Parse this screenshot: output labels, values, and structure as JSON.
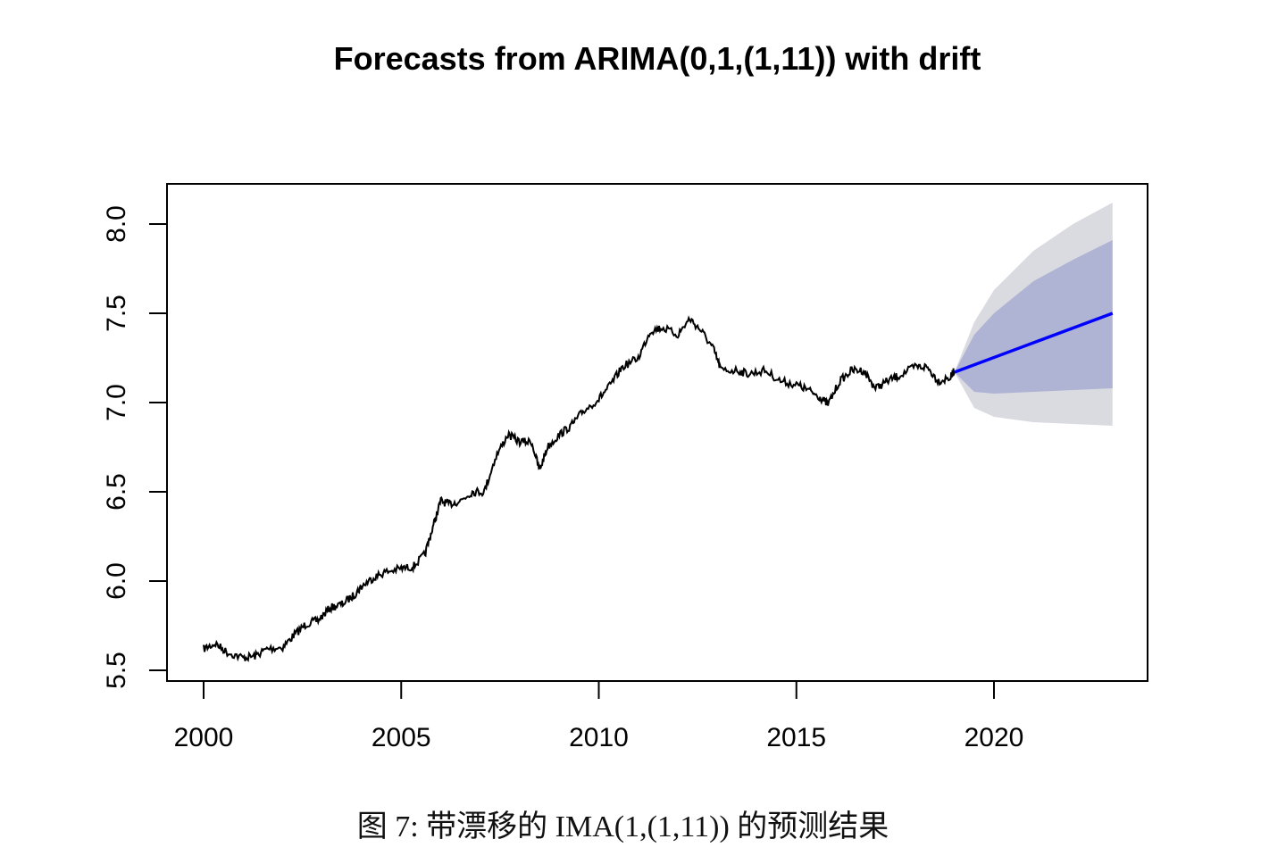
{
  "chart_data": {
    "type": "line",
    "title": "Forecasts from ARIMA(0,1,(1,11)) with drift",
    "xlabel": "",
    "ylabel": "",
    "xlim": [
      1999.1,
      2023.9
    ],
    "ylim": [
      5.44,
      8.23
    ],
    "x_ticks": [
      2000,
      2005,
      2010,
      2015,
      2020
    ],
    "x_tick_labels": [
      "2000",
      "2005",
      "2010",
      "2015",
      "2020"
    ],
    "y_ticks": [
      5.5,
      6.0,
      6.5,
      7.0,
      7.5,
      8.0
    ],
    "y_tick_labels": [
      "5.5",
      "6.0",
      "6.5",
      "7.0",
      "7.5",
      "8.0"
    ],
    "grid": false,
    "legend": "none",
    "series": [
      {
        "color": "#000000",
        "x": [
          2000.0,
          2000.3,
          2000.6,
          2001.0,
          2001.3,
          2001.6,
          2002.0,
          2002.3,
          2002.6,
          2002.9,
          2003.2,
          2003.5,
          2003.8,
          2004.0,
          2004.3,
          2004.6,
          2005.0,
          2005.3,
          2005.6,
          2005.8,
          2006.0,
          2006.2,
          2006.5,
          2006.8,
          2007.1,
          2007.4,
          2007.7,
          2008.0,
          2008.3,
          2008.5,
          2008.7,
          2009.0,
          2009.3,
          2009.6,
          2010.0,
          2010.3,
          2010.6,
          2011.0,
          2011.3,
          2011.6,
          2012.0,
          2012.3,
          2012.6,
          2012.9,
          2013.1,
          2013.5,
          2013.8,
          2014.2,
          2014.6,
          2015.0,
          2015.3,
          2015.6,
          2015.8,
          2016.1,
          2016.4,
          2016.7,
          2017.0,
          2017.3,
          2017.6,
          2018.0,
          2018.3,
          2018.6,
          2018.9,
          2019.0
        ],
        "y": [
          5.62,
          5.65,
          5.6,
          5.57,
          5.58,
          5.62,
          5.63,
          5.7,
          5.76,
          5.78,
          5.85,
          5.87,
          5.92,
          5.97,
          6.02,
          6.05,
          6.07,
          6.08,
          6.15,
          6.3,
          6.45,
          6.43,
          6.45,
          6.5,
          6.5,
          6.7,
          6.82,
          6.78,
          6.78,
          6.62,
          6.75,
          6.82,
          6.87,
          6.95,
          7.02,
          7.1,
          7.2,
          7.25,
          7.4,
          7.42,
          7.38,
          7.47,
          7.4,
          7.3,
          7.18,
          7.18,
          7.16,
          7.18,
          7.12,
          7.1,
          7.07,
          7.03,
          6.99,
          7.12,
          7.18,
          7.18,
          7.08,
          7.12,
          7.15,
          7.2,
          7.2,
          7.12,
          7.14,
          7.18
        ]
      },
      {
        "name": "",
        "color": "#0000ff",
        "x": [
          2019.0,
          2023.0
        ],
        "y": [
          7.17,
          7.5
        ]
      }
    ],
    "intervals": [
      {
        "level": 95,
        "color": "#dadae1",
        "x": [
          2019.0,
          2019.5,
          2020.0,
          2021.0,
          2022.0,
          2023.0
        ],
        "lower": [
          7.17,
          6.97,
          6.92,
          6.89,
          6.88,
          6.87
        ],
        "upper": [
          7.17,
          7.45,
          7.63,
          7.85,
          8.0,
          8.12
        ]
      },
      {
        "level": 80,
        "color": "#b0b4d4",
        "x": [
          2019.0,
          2019.5,
          2020.0,
          2021.0,
          2022.0,
          2023.0
        ],
        "lower": [
          7.17,
          7.06,
          7.05,
          7.06,
          7.07,
          7.08
        ],
        "upper": [
          7.17,
          7.38,
          7.5,
          7.68,
          7.8,
          7.91
        ]
      }
    ]
  },
  "caption": "图 7: 带漂移的 IMA(1,(1,11)) 的预测结果"
}
